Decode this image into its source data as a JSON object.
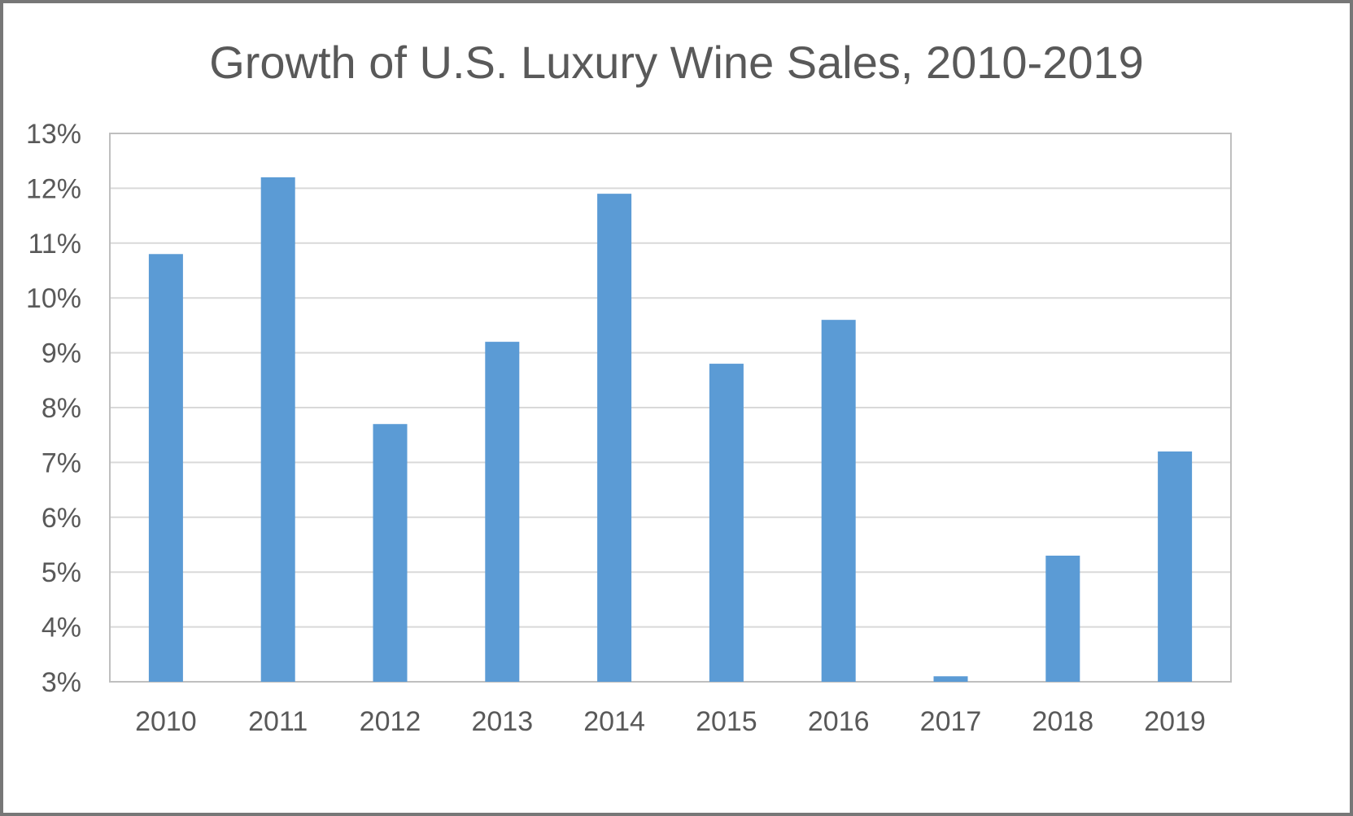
{
  "chart_data": {
    "type": "bar",
    "title": "Growth of U.S. Luxury Wine Sales, 2010-2019",
    "categories": [
      "2010",
      "2011",
      "2012",
      "2013",
      "2014",
      "2015",
      "2016",
      "2017",
      "2018",
      "2019"
    ],
    "values": [
      10.8,
      12.2,
      7.7,
      9.2,
      11.9,
      8.8,
      9.6,
      3.1,
      5.3,
      7.2
    ],
    "ylim": [
      3,
      13
    ],
    "yticks": [
      "3%",
      "4%",
      "5%",
      "6%",
      "7%",
      "8%",
      "9%",
      "10%",
      "11%",
      "12%",
      "13%"
    ],
    "xlabel": "",
    "ylabel": "",
    "grid": true,
    "legend": "none",
    "bar_color": "#5b9bd5"
  }
}
